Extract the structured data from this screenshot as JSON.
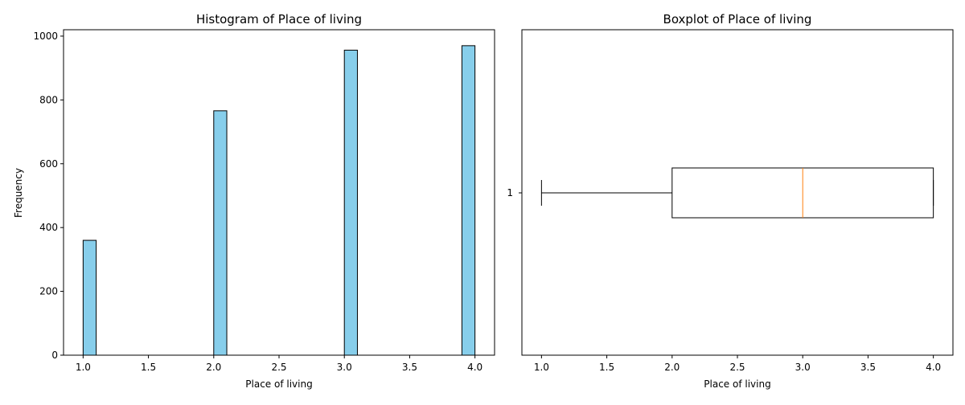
{
  "chart_data": [
    {
      "type": "histogram",
      "title": "Histogram of Place of living",
      "xlabel": "Place of living",
      "ylabel": "Frequency",
      "xlim": [
        0.85,
        4.15
      ],
      "ylim": [
        0,
        1020
      ],
      "xticks": [
        "1.0",
        "1.5",
        "2.0",
        "2.5",
        "3.0",
        "3.5",
        "4.0"
      ],
      "yticks": [
        "0",
        "200",
        "400",
        "600",
        "800",
        "1000"
      ],
      "bins": [
        {
          "x0": 1.0,
          "x1": 1.1,
          "count": 360
        },
        {
          "x0": 2.0,
          "x1": 2.1,
          "count": 766
        },
        {
          "x0": 3.0,
          "x1": 3.1,
          "count": 956
        },
        {
          "x0": 3.9,
          "x1": 4.0,
          "count": 970
        }
      ],
      "bar_color": "#87ceeb",
      "edge_color": "#000000"
    },
    {
      "type": "boxplot",
      "title": "Boxplot of Place of living",
      "xlabel": "Place of living",
      "ylabel": "",
      "xlim": [
        0.85,
        4.15
      ],
      "xticks": [
        "1.0",
        "1.5",
        "2.0",
        "2.5",
        "3.0",
        "3.5",
        "4.0"
      ],
      "yticks": [
        "1"
      ],
      "box": {
        "whisker_low": 1.0,
        "q1": 2.0,
        "median": 3.0,
        "q3": 4.0,
        "whisker_high": 4.0
      },
      "median_color": "#ff7f0e",
      "edge_color": "#000000"
    }
  ]
}
